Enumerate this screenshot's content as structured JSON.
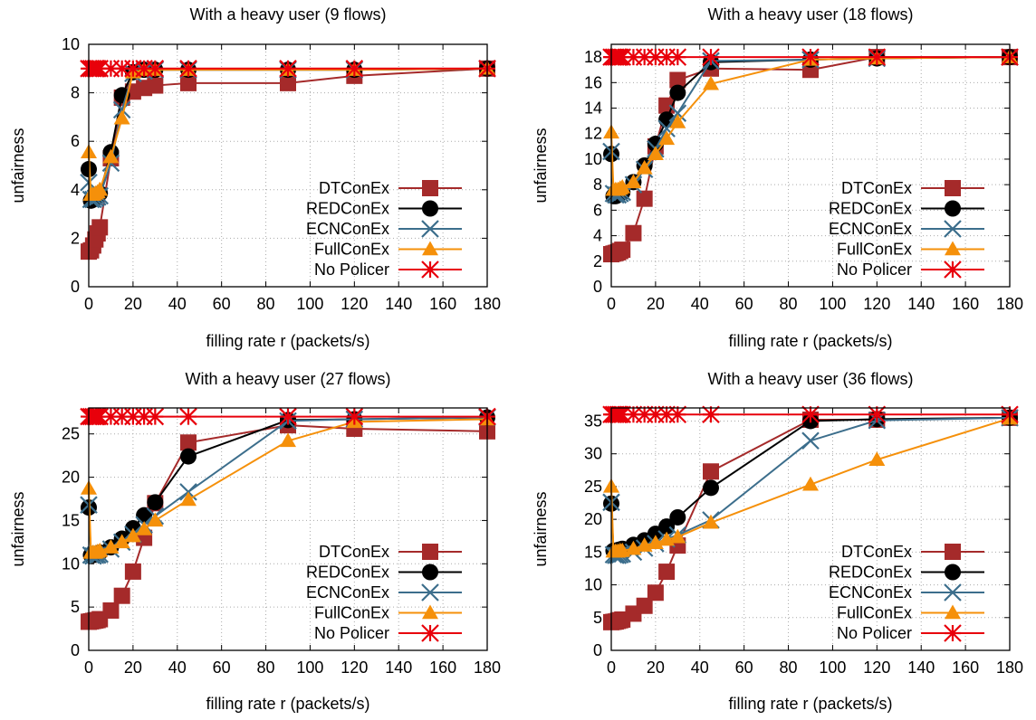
{
  "chart_data": [
    {
      "type": "line",
      "title": "With a heavy user (9 flows)",
      "xlabel": "filling rate r (packets/s)",
      "ylabel": "unfairness",
      "xlim": [
        0,
        180
      ],
      "ylim": [
        0,
        10
      ],
      "xticks": [
        0,
        20,
        40,
        60,
        80,
        100,
        120,
        140,
        160,
        180
      ],
      "yticks": [
        0,
        2,
        4,
        6,
        8,
        10
      ],
      "grid": true,
      "legend_position": "right",
      "series": [
        {
          "name": "DTConEx",
          "color": "#a52a2a",
          "marker": "square",
          "x": [
            0,
            1,
            2,
            3,
            4,
            5,
            10,
            15,
            20,
            25,
            30,
            45,
            90,
            120,
            180
          ],
          "y": [
            1.45,
            1.5,
            1.7,
            1.95,
            2.2,
            2.45,
            5.3,
            7.8,
            8.05,
            8.2,
            8.3,
            8.4,
            8.4,
            8.7,
            9.0
          ]
        },
        {
          "name": "REDConEx",
          "color": "#000000",
          "marker": "circle",
          "x": [
            0,
            1,
            2,
            3,
            4,
            5,
            10,
            15,
            20,
            25,
            30,
            45,
            90,
            120,
            180
          ],
          "y": [
            4.85,
            3.55,
            3.6,
            3.65,
            3.75,
            3.85,
            5.55,
            7.9,
            8.85,
            8.95,
            8.95,
            8.95,
            8.95,
            8.95,
            9.0
          ]
        },
        {
          "name": "ECNConEx",
          "color": "#3c6e8c",
          "marker": "x",
          "x": [
            0,
            1,
            2,
            3,
            4,
            5,
            10,
            15,
            20,
            25,
            30,
            45,
            90,
            120,
            180
          ],
          "y": [
            4.3,
            3.6,
            3.6,
            3.65,
            3.7,
            3.75,
            5.1,
            7.3,
            8.8,
            8.9,
            8.95,
            8.95,
            8.95,
            8.95,
            9.0
          ]
        },
        {
          "name": "FullConEx",
          "color": "#f5900a",
          "marker": "triangle",
          "x": [
            0,
            1,
            2,
            3,
            4,
            5,
            10,
            15,
            20,
            25,
            30,
            45,
            90,
            120,
            180
          ],
          "y": [
            5.55,
            3.8,
            3.8,
            3.85,
            3.9,
            4.0,
            5.35,
            6.95,
            8.85,
            8.95,
            8.95,
            8.95,
            8.95,
            8.95,
            9.0
          ]
        },
        {
          "name": "No Policer",
          "color": "#e8000b",
          "marker": "star",
          "x": [
            0,
            1,
            2,
            3,
            4,
            5,
            10,
            15,
            20,
            25,
            30,
            45,
            90,
            120,
            180
          ],
          "y": [
            9,
            9,
            9,
            9,
            9,
            9,
            9,
            9,
            9,
            9,
            9,
            9,
            9,
            9,
            9
          ]
        }
      ]
    },
    {
      "type": "line",
      "title": "With a heavy user (18 flows)",
      "xlabel": "filling rate r (packets/s)",
      "ylabel": "unfairness",
      "xlim": [
        0,
        180
      ],
      "ylim": [
        0,
        19
      ],
      "xticks": [
        0,
        20,
        40,
        60,
        80,
        100,
        120,
        140,
        160,
        180
      ],
      "yticks": [
        0,
        2,
        4,
        6,
        8,
        10,
        12,
        14,
        16,
        18
      ],
      "grid": true,
      "legend_position": "right",
      "series": [
        {
          "name": "DTConEx",
          "color": "#a52a2a",
          "marker": "square",
          "x": [
            0,
            1,
            2,
            3,
            4,
            5,
            10,
            15,
            20,
            25,
            30,
            45,
            90,
            120,
            180
          ],
          "y": [
            2.55,
            2.6,
            2.65,
            2.7,
            2.8,
            2.9,
            4.2,
            6.9,
            11.0,
            14.2,
            16.2,
            17.1,
            17.0,
            18.0,
            18.0
          ]
        },
        {
          "name": "REDConEx",
          "color": "#000000",
          "marker": "circle",
          "x": [
            0,
            1,
            2,
            3,
            4,
            5,
            10,
            15,
            20,
            25,
            30,
            45,
            90,
            120,
            180
          ],
          "y": [
            10.4,
            7.1,
            7.1,
            7.2,
            7.3,
            7.4,
            8.2,
            9.5,
            11.2,
            13.1,
            15.2,
            17.6,
            17.8,
            17.9,
            18.0
          ]
        },
        {
          "name": "ECNConEx",
          "color": "#3c6e8c",
          "marker": "x",
          "x": [
            0,
            1,
            2,
            3,
            4,
            5,
            10,
            15,
            20,
            25,
            30,
            45,
            90,
            120,
            180
          ],
          "y": [
            10.6,
            7.3,
            7.2,
            7.2,
            7.3,
            7.4,
            8.0,
            9.2,
            10.8,
            12.4,
            13.6,
            17.7,
            17.8,
            17.9,
            18.0
          ]
        },
        {
          "name": "FullConEx",
          "color": "#f5900a",
          "marker": "triangle",
          "x": [
            0,
            1,
            2,
            3,
            4,
            5,
            10,
            15,
            20,
            25,
            30,
            45,
            90,
            120,
            180
          ],
          "y": [
            12.1,
            7.6,
            7.6,
            7.6,
            7.7,
            7.8,
            8.2,
            9.3,
            10.4,
            11.6,
            12.9,
            15.9,
            17.8,
            17.9,
            18.0
          ]
        },
        {
          "name": "No Policer",
          "color": "#e8000b",
          "marker": "star",
          "x": [
            0,
            1,
            2,
            3,
            4,
            5,
            10,
            15,
            20,
            25,
            30,
            45,
            90,
            120,
            180
          ],
          "y": [
            18,
            18,
            18,
            18,
            18,
            18,
            18,
            18,
            18,
            18,
            18,
            18,
            18,
            18,
            18
          ]
        }
      ]
    },
    {
      "type": "line",
      "title": "With a heavy user (27 flows)",
      "xlabel": "filling rate r (packets/s)",
      "ylabel": "unfairness",
      "xlim": [
        0,
        180
      ],
      "ylim": [
        0,
        28
      ],
      "xticks": [
        0,
        20,
        40,
        60,
        80,
        100,
        120,
        140,
        160,
        180
      ],
      "yticks": [
        0,
        5,
        10,
        15,
        20,
        25
      ],
      "grid": true,
      "legend_position": "right",
      "series": [
        {
          "name": "DTConEx",
          "color": "#a52a2a",
          "marker": "square",
          "x": [
            0,
            1,
            2,
            3,
            4,
            5,
            10,
            15,
            20,
            25,
            30,
            45,
            90,
            120,
            180
          ],
          "y": [
            3.3,
            3.35,
            3.4,
            3.45,
            3.5,
            3.6,
            4.6,
            6.3,
            9.1,
            13.0,
            17.0,
            24.0,
            26.0,
            25.6,
            25.3
          ]
        },
        {
          "name": "REDConEx",
          "color": "#000000",
          "marker": "circle",
          "x": [
            0,
            1,
            2,
            3,
            4,
            5,
            10,
            15,
            20,
            25,
            30,
            45,
            90,
            120,
            180
          ],
          "y": [
            16.5,
            11.0,
            11.0,
            11.1,
            11.2,
            11.3,
            11.9,
            12.9,
            14.1,
            15.6,
            17.1,
            22.4,
            26.6,
            26.7,
            26.9
          ]
        },
        {
          "name": "ECNConEx",
          "color": "#3c6e8c",
          "marker": "x",
          "x": [
            0,
            1,
            2,
            3,
            4,
            5,
            10,
            15,
            20,
            25,
            30,
            45,
            90,
            120,
            180
          ],
          "y": [
            16.8,
            11.0,
            10.9,
            11.0,
            11.0,
            11.1,
            11.7,
            12.5,
            13.4,
            14.5,
            15.5,
            18.3,
            26.5,
            26.7,
            26.9
          ]
        },
        {
          "name": "FullConEx",
          "color": "#f5900a",
          "marker": "triangle",
          "x": [
            0,
            1,
            2,
            3,
            4,
            5,
            10,
            15,
            20,
            25,
            30,
            45,
            90,
            120,
            180
          ],
          "y": [
            18.7,
            11.3,
            11.3,
            11.3,
            11.4,
            11.5,
            11.9,
            12.5,
            13.2,
            14.0,
            15.0,
            17.4,
            24.2,
            26.4,
            26.7
          ]
        },
        {
          "name": "No Policer",
          "color": "#e8000b",
          "marker": "star",
          "x": [
            0,
            1,
            2,
            3,
            4,
            5,
            10,
            15,
            20,
            25,
            30,
            45,
            90,
            120,
            180
          ],
          "y": [
            27,
            27,
            27,
            27,
            27,
            27,
            27,
            27,
            27,
            27,
            27,
            27,
            27,
            27,
            27
          ]
        }
      ]
    },
    {
      "type": "line",
      "title": "With a heavy user (36 flows)",
      "xlabel": "filling rate r (packets/s)",
      "ylabel": "unfairness",
      "xlim": [
        0,
        180
      ],
      "ylim": [
        0,
        37
      ],
      "xticks": [
        0,
        20,
        40,
        60,
        80,
        100,
        120,
        140,
        160,
        180
      ],
      "yticks": [
        0,
        5,
        10,
        15,
        20,
        25,
        30,
        35
      ],
      "grid": true,
      "legend_position": "right",
      "series": [
        {
          "name": "DTConEx",
          "color": "#a52a2a",
          "marker": "square",
          "x": [
            0,
            1,
            2,
            3,
            4,
            5,
            10,
            15,
            20,
            25,
            30,
            45,
            90,
            120,
            180
          ],
          "y": [
            4.3,
            4.35,
            4.4,
            4.5,
            4.6,
            4.7,
            5.6,
            6.8,
            8.8,
            12.0,
            16.0,
            27.3,
            35.2,
            35.2,
            35.5
          ]
        },
        {
          "name": "REDConEx",
          "color": "#000000",
          "marker": "circle",
          "x": [
            0,
            1,
            2,
            3,
            4,
            5,
            10,
            15,
            20,
            25,
            30,
            45,
            90,
            120,
            180
          ],
          "y": [
            22.4,
            15.2,
            15.2,
            15.3,
            15.4,
            15.5,
            16.1,
            16.8,
            17.8,
            18.9,
            20.3,
            24.8,
            35.0,
            35.3,
            35.5
          ]
        },
        {
          "name": "ECNConEx",
          "color": "#3c6e8c",
          "marker": "x",
          "x": [
            0,
            1,
            2,
            3,
            4,
            5,
            10,
            15,
            20,
            25,
            30,
            45,
            90,
            120,
            180
          ],
          "y": [
            22.6,
            14.6,
            14.5,
            14.5,
            14.6,
            14.7,
            15.0,
            15.6,
            16.3,
            17.0,
            17.6,
            19.9,
            32.0,
            35.1,
            35.5
          ]
        },
        {
          "name": "FullConEx",
          "color": "#f5900a",
          "marker": "triangle",
          "x": [
            0,
            1,
            2,
            3,
            4,
            5,
            10,
            15,
            20,
            25,
            30,
            45,
            90,
            120,
            180
          ],
          "y": [
            25.0,
            15.1,
            15.1,
            15.1,
            15.2,
            15.2,
            15.5,
            16.0,
            16.4,
            16.9,
            17.3,
            19.5,
            25.3,
            29.1,
            35.4
          ]
        },
        {
          "name": "No Policer",
          "color": "#e8000b",
          "marker": "star",
          "x": [
            0,
            1,
            2,
            3,
            4,
            5,
            10,
            15,
            20,
            25,
            30,
            45,
            90,
            120,
            180
          ],
          "y": [
            36,
            36,
            36,
            36,
            36,
            36,
            36,
            36,
            36,
            36,
            36,
            36,
            36,
            36,
            36
          ]
        }
      ]
    }
  ]
}
